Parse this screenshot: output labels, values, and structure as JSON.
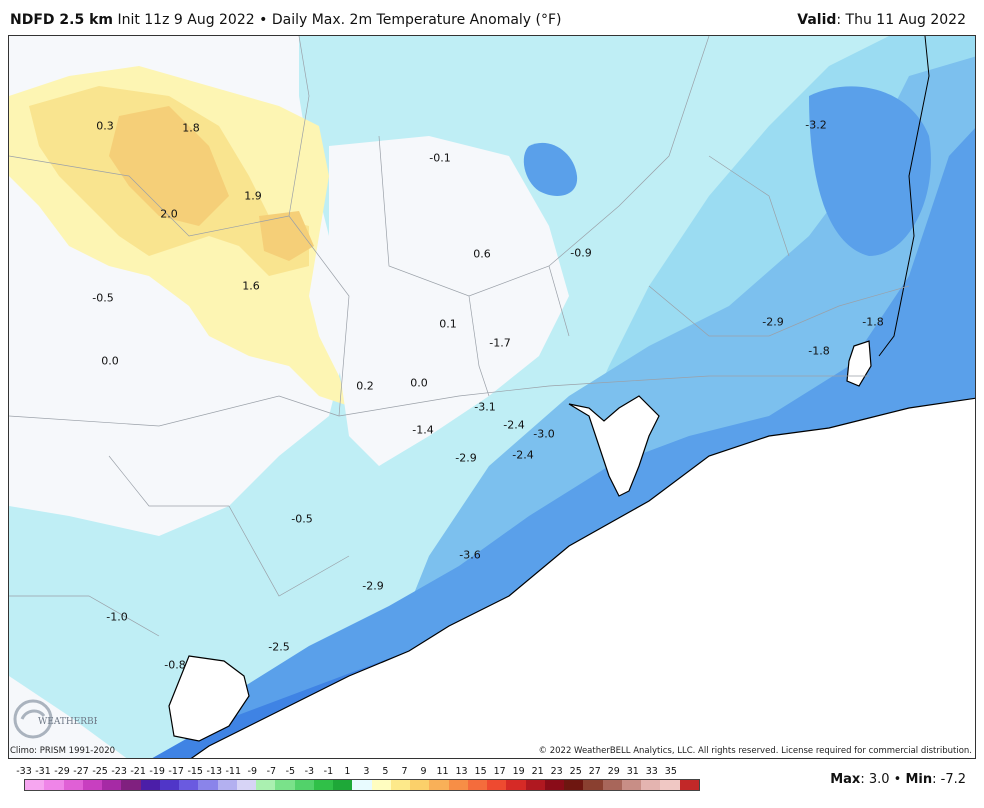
{
  "header": {
    "model": "NDFD 2.5 km",
    "init": "Init 11z 9 Aug 2022",
    "separator": "•",
    "product": "Daily Max. 2m Temperature Anomaly (°F)",
    "valid_label": "Valid",
    "valid_value": ": Thu 11 Aug 2022"
  },
  "map": {
    "anomaly_labels": [
      "0.3",
      "1.8",
      "-0.1",
      "-3.2",
      "1.9",
      "2.0",
      "0.6",
      "-0.9",
      "1.6",
      "-0.5",
      "0.1",
      "-1.7",
      "-2.9",
      "-1.8",
      "-1.8",
      "0.0",
      "0.2",
      "0.0",
      "-3.1",
      "-2.4",
      "-3.0",
      "-1.4",
      "-2.9",
      "-2.4",
      "-0.5",
      "-3.6",
      "-2.9",
      "-1.0",
      "-2.5",
      "-0.8"
    ],
    "colors": {
      "land": "#f6f8fb",
      "water": "#ffffff",
      "warm1": "#fdf5b3",
      "warm2": "#f9e48f",
      "warm3": "#f5cf78",
      "cool1": "#bfeef5",
      "cool2": "#9bdcf2",
      "cool3": "#7cc0ee",
      "cool4": "#5aa0ea",
      "cool5": "#3f83e4",
      "coast": "#000000",
      "border": "#9aa0a8"
    }
  },
  "logo": {
    "text": "WEATHERBELL"
  },
  "footer": {
    "climo": "Climo: PRISM 1991-2020",
    "copyright": "© 2022 WeatherBELL Analytics, LLC. All rights reserved. License required for commercial distribution."
  },
  "legend": {
    "ticks": [
      "-33",
      "-31",
      "-29",
      "-27",
      "-25",
      "-23",
      "-21",
      "-19",
      "-17",
      "-15",
      "-13",
      "-11",
      "-9",
      "-7",
      "-5",
      "-3",
      "-1",
      "1",
      "3",
      "5",
      "7",
      "9",
      "11",
      "13",
      "15",
      "17",
      "19",
      "21",
      "23",
      "25",
      "27",
      "29",
      "31",
      "33",
      "35"
    ],
    "colors": [
      "#f6a6f0",
      "#ef85e8",
      "#e060d6",
      "#c83fc0",
      "#a62aa5",
      "#80207f",
      "#4b1ea8",
      "#5036c8",
      "#6a5ae0",
      "#8a84ea",
      "#b3b0f0",
      "#d7d4f6",
      "#aaf0b0",
      "#7ae28a",
      "#52d26a",
      "#30c048",
      "#1ea838",
      "#e8fbff",
      "#fffdc0",
      "#fde98a",
      "#fbd06a",
      "#f9b058",
      "#f78e46",
      "#f46c3c",
      "#ee4a30",
      "#d62a26",
      "#b01820",
      "#8a0c18",
      "#6e1610",
      "#8a4030",
      "#a8665a",
      "#c88e86",
      "#e4b4b0",
      "#f0c8c4",
      "#c22828"
    ]
  },
  "maxmin": {
    "max_label": "Max",
    "max_value": ": 3.0",
    "sep": " • ",
    "min_label": "Min",
    "min_value": ": -7.2"
  }
}
